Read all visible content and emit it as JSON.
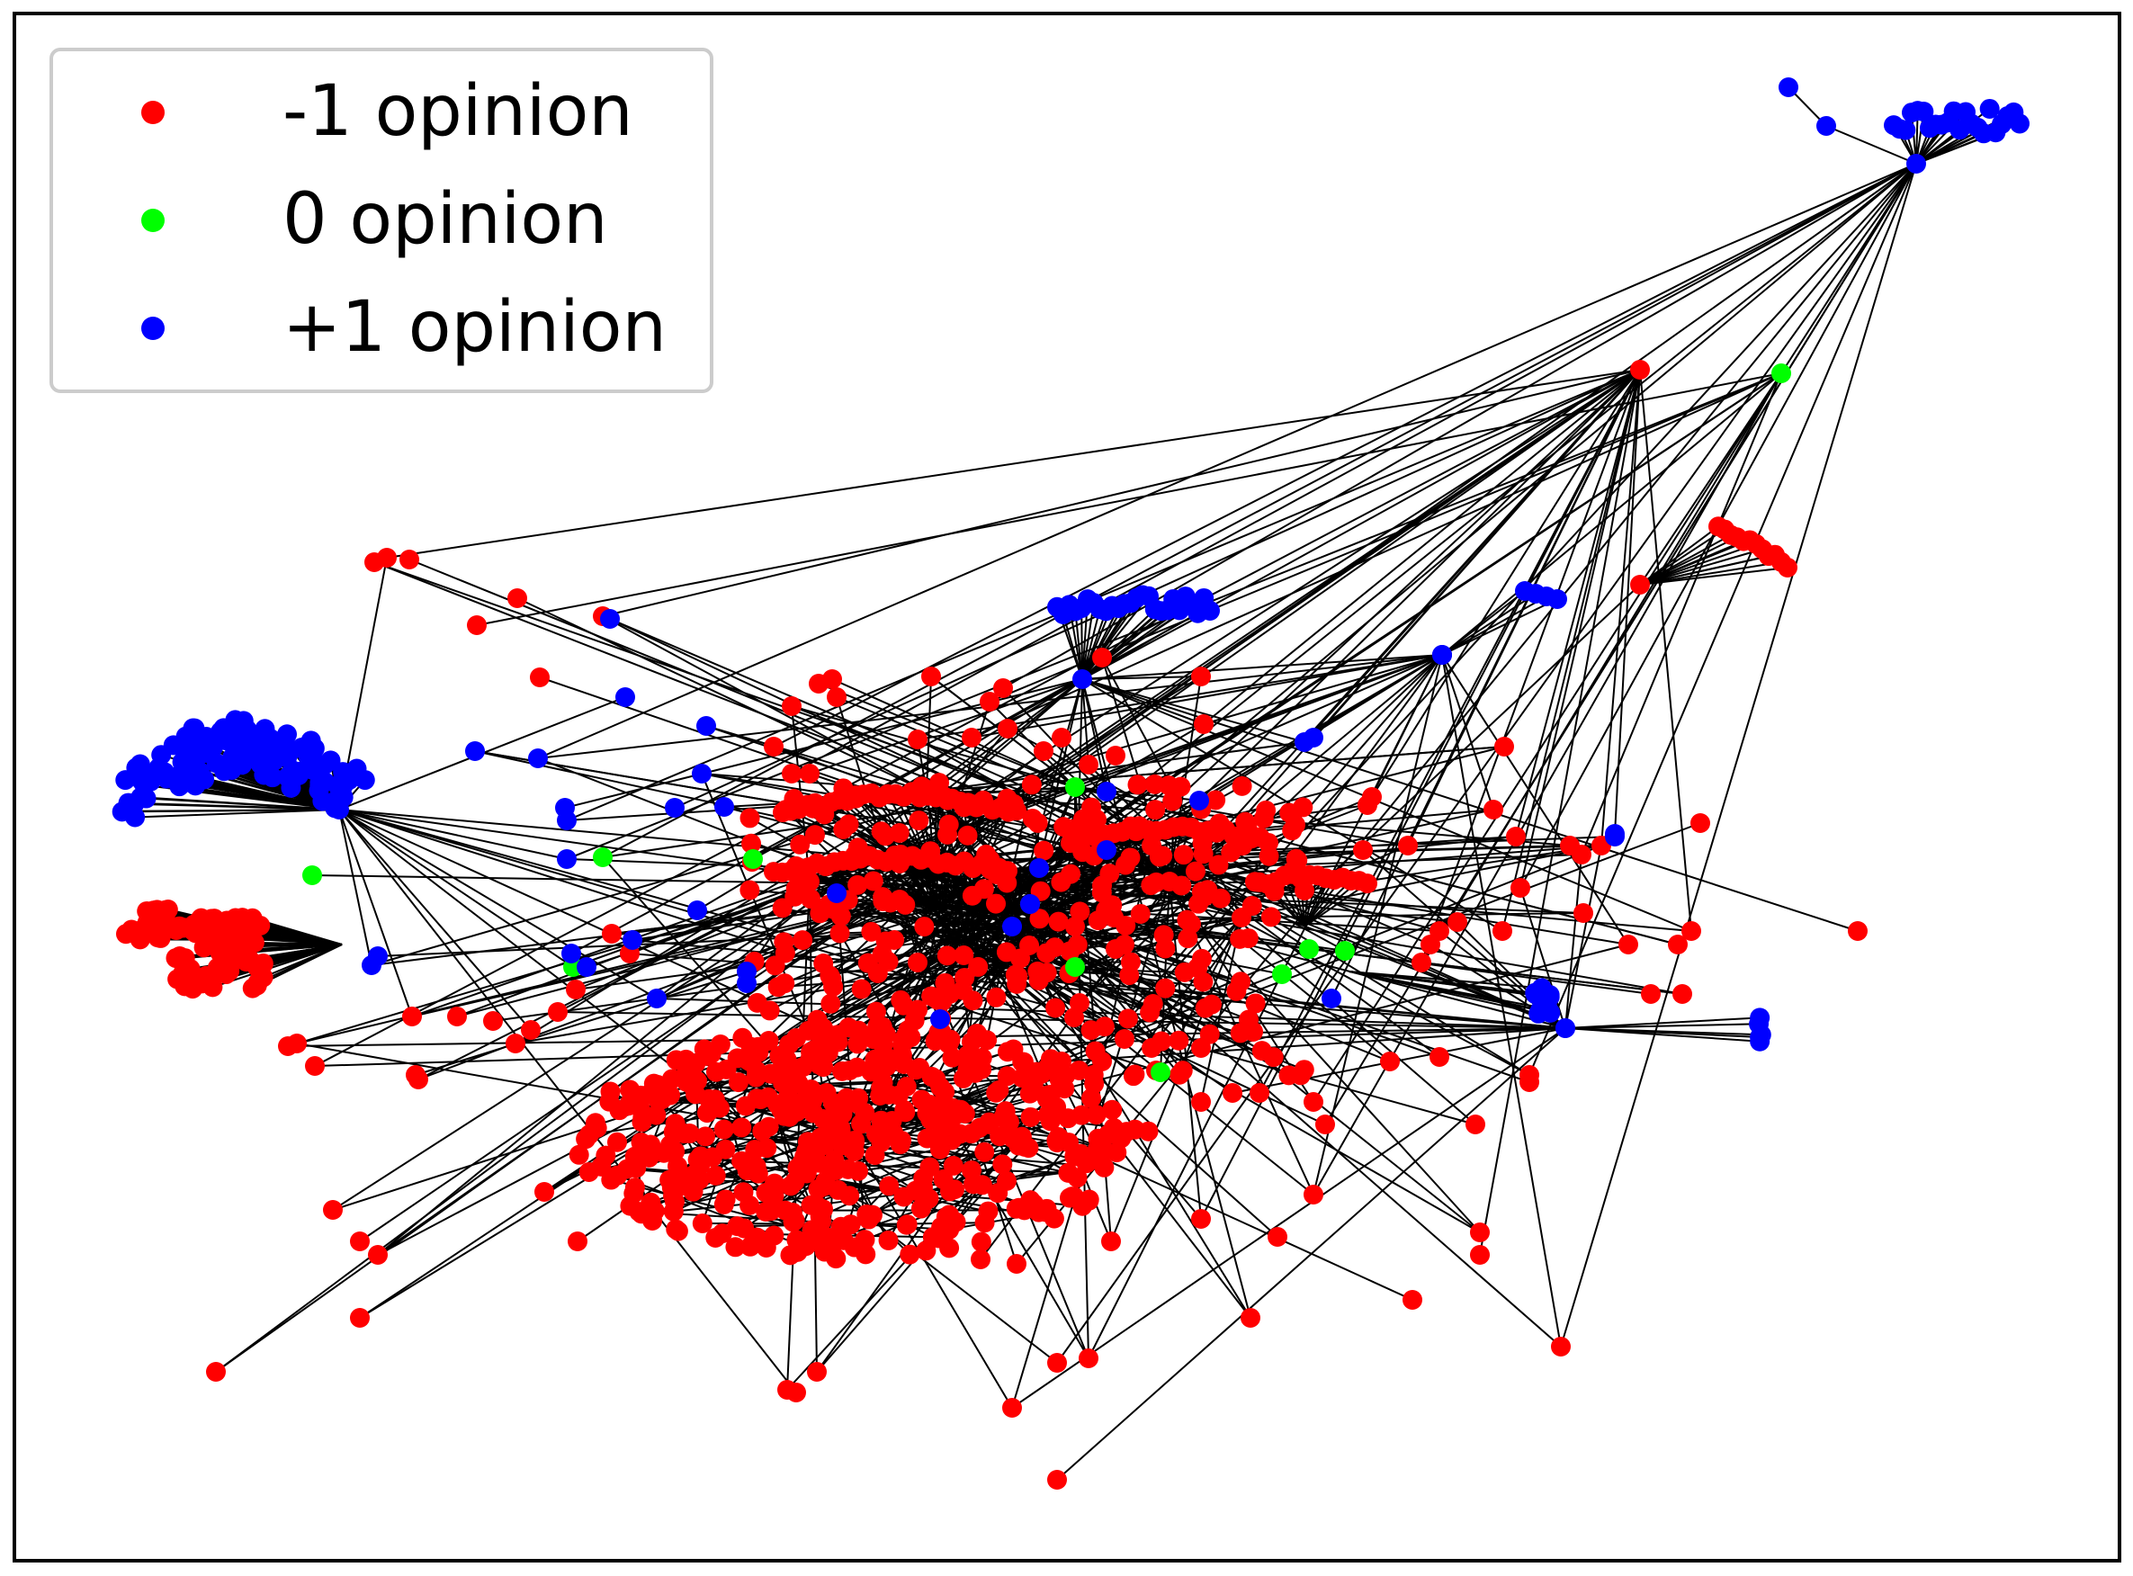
{
  "legend": {
    "placement": "top-left",
    "entries": [
      {
        "label": "-1 opinion",
        "color": "#ff0000"
      },
      {
        "label": "0 opinion",
        "color": "#00ff00"
      },
      {
        "label": "+1 opinion",
        "color": "#0000ff"
      }
    ]
  },
  "colors": {
    "opinion_negative": "#ff0000",
    "opinion_neutral": "#00ff00",
    "opinion_positive": "#0000ff",
    "edge": "#000000",
    "frame": "#000000",
    "background": "#ffffff"
  },
  "network": {
    "layout": "force-directed",
    "node_states": [
      "-1 opinion",
      "0 opinion",
      "+1 opinion"
    ],
    "dominant_state": "-1 opinion"
  }
}
